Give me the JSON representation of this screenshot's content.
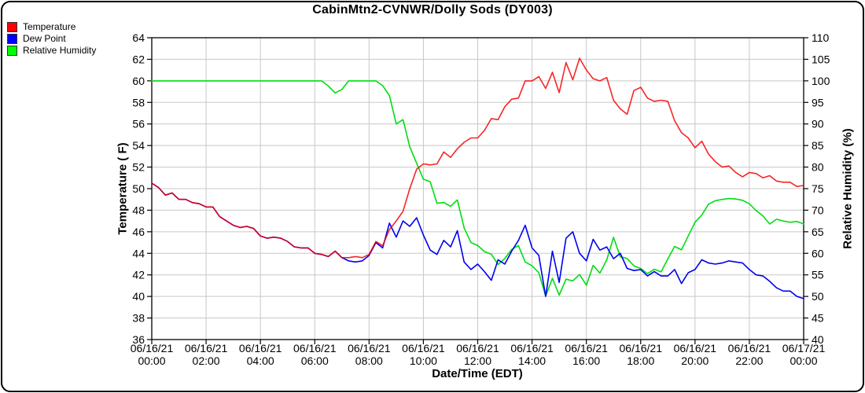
{
  "window": {
    "title": "CabinMtn2-CVNWR/Dolly Sods (DY003)"
  },
  "legend": {
    "items": [
      {
        "label": "Temperature",
        "color": "#ff0000"
      },
      {
        "label": "Dew Point",
        "color": "#0000ff"
      },
      {
        "label": "Relative Humidity",
        "color": "#00ff00"
      }
    ]
  },
  "chart_data": {
    "type": "line",
    "title": "CabinMtn2-CVNWR/Dolly Sods (DY003)",
    "xlabel": "Date/Time (EDT)",
    "y_left_label": "Temperature ( F)",
    "y_right_label": "Relative Humidity (%)",
    "grid": true,
    "grid_color": "#c8c8c8",
    "legend_position": "top-left",
    "x_range_hours": [
      0,
      24
    ],
    "sample_interval_minutes": 15,
    "x_ticks": [
      {
        "hour": 0,
        "date": "06/16/21",
        "time": "00:00"
      },
      {
        "hour": 2,
        "date": "06/16/21",
        "time": "02:00"
      },
      {
        "hour": 4,
        "date": "06/16/21",
        "time": "04:00"
      },
      {
        "hour": 6,
        "date": "06/16/21",
        "time": "06:00"
      },
      {
        "hour": 8,
        "date": "06/16/21",
        "time": "08:00"
      },
      {
        "hour": 10,
        "date": "06/16/21",
        "time": "10:00"
      },
      {
        "hour": 12,
        "date": "06/16/21",
        "time": "12:00"
      },
      {
        "hour": 14,
        "date": "06/16/21",
        "time": "14:00"
      },
      {
        "hour": 16,
        "date": "06/16/21",
        "time": "16:00"
      },
      {
        "hour": 18,
        "date": "06/16/21",
        "time": "18:00"
      },
      {
        "hour": 20,
        "date": "06/16/21",
        "time": "20:00"
      },
      {
        "hour": 22,
        "date": "06/16/21",
        "time": "22:00"
      },
      {
        "hour": 24,
        "date": "06/17/21",
        "time": "00:00"
      }
    ],
    "y_left": {
      "min": 36,
      "max": 64,
      "tick_step": 2,
      "ticks": [
        36,
        38,
        40,
        42,
        44,
        46,
        48,
        50,
        52,
        54,
        56,
        58,
        60,
        62,
        64
      ]
    },
    "y_right": {
      "min": 40,
      "max": 110,
      "tick_step": 5,
      "ticks": [
        40,
        45,
        50,
        55,
        60,
        65,
        70,
        75,
        80,
        85,
        90,
        95,
        100,
        105,
        110
      ]
    },
    "series": [
      {
        "name": "Temperature",
        "axis": "left",
        "color": "#f50000",
        "opacity": 0.85,
        "values": [
          50.5,
          50.1,
          49.4,
          49.6,
          49.0,
          49.0,
          48.7,
          48.6,
          48.3,
          48.3,
          47.4,
          47.0,
          46.6,
          46.4,
          46.5,
          46.3,
          45.6,
          45.4,
          45.5,
          45.4,
          45.1,
          44.6,
          44.5,
          44.5,
          44.0,
          43.9,
          43.7,
          44.2,
          43.6,
          43.6,
          43.7,
          43.6,
          43.9,
          45.1,
          44.7,
          46.2,
          47.0,
          47.9,
          50.0,
          51.8,
          52.3,
          52.2,
          52.3,
          53.4,
          52.9,
          53.7,
          54.3,
          54.7,
          54.7,
          55.4,
          56.5,
          56.4,
          57.6,
          58.3,
          58.4,
          60.0,
          60.0,
          60.4,
          59.3,
          60.8,
          58.9,
          61.7,
          60.1,
          62.1,
          61.0,
          60.2,
          60.0,
          60.3,
          58.2,
          57.4,
          56.9,
          59.1,
          59.4,
          58.4,
          58.1,
          58.2,
          58.1,
          56.3,
          55.2,
          54.7,
          53.8,
          54.4,
          53.2,
          52.5,
          52.0,
          52.1,
          51.5,
          51.1,
          51.5,
          51.4,
          51.0,
          51.2,
          50.7,
          50.6,
          50.6,
          50.2,
          50.3
        ]
      },
      {
        "name": "Dew Point",
        "axis": "left",
        "color": "#0000f0",
        "opacity": 1,
        "values": [
          50.5,
          50.1,
          49.4,
          49.6,
          49.0,
          49.0,
          48.7,
          48.6,
          48.3,
          48.3,
          47.4,
          47.0,
          46.6,
          46.4,
          46.5,
          46.3,
          45.6,
          45.4,
          45.5,
          45.4,
          45.1,
          44.6,
          44.5,
          44.5,
          44.0,
          43.9,
          43.7,
          44.2,
          43.6,
          43.3,
          43.2,
          43.3,
          43.8,
          45.0,
          44.5,
          46.8,
          45.5,
          47.0,
          46.5,
          47.3,
          45.7,
          44.3,
          43.9,
          45.2,
          44.6,
          46.1,
          43.2,
          42.5,
          43.0,
          42.3,
          41.5,
          43.4,
          43.0,
          44.2,
          45.2,
          46.6,
          44.5,
          43.8,
          40.0,
          44.2,
          41.3,
          45.4,
          46.0,
          44.0,
          43.3,
          45.3,
          44.3,
          44.6,
          43.5,
          44.0,
          42.6,
          42.4,
          42.5,
          41.9,
          42.3,
          41.9,
          41.9,
          42.5,
          41.2,
          42.2,
          42.5,
          43.4,
          43.1,
          43.0,
          43.1,
          43.3,
          43.2,
          43.1,
          42.5,
          42.0,
          41.9,
          41.4,
          40.8,
          40.5,
          40.5,
          40.0,
          39.8
        ]
      },
      {
        "name": "Relative Humidity",
        "axis": "right",
        "color": "#00dd11",
        "opacity": 1,
        "values": [
          100,
          100,
          100,
          100,
          100,
          100,
          100,
          100,
          100,
          100,
          100,
          100,
          100,
          100,
          100,
          100,
          100,
          100,
          100,
          100,
          100,
          100,
          100,
          100,
          100,
          100,
          98.8,
          97.2,
          98.0,
          100,
          100,
          100,
          100,
          100,
          98.9,
          96.6,
          90.0,
          91.0,
          84.7,
          80.9,
          77.2,
          76.6,
          71.6,
          71.8,
          70.9,
          72.4,
          65.9,
          62.5,
          61.8,
          60.4,
          59.8,
          57.4,
          58.8,
          60.9,
          61.8,
          58.0,
          57.1,
          55.5,
          50.1,
          54.2,
          50.3,
          54.0,
          53.6,
          55.1,
          52.6,
          57.2,
          55.4,
          58.5,
          63.7,
          59.2,
          58.8,
          57.1,
          56.5,
          55.3,
          56.3,
          55.7,
          58.7,
          61.6,
          60.8,
          64.0,
          67.2,
          68.9,
          71.4,
          72.2,
          72.5,
          72.7,
          72.6,
          72.3,
          71.5,
          69.9,
          68.7,
          66.8,
          67.9,
          67.5,
          67.2,
          67.4,
          66.8
        ]
      }
    ]
  }
}
